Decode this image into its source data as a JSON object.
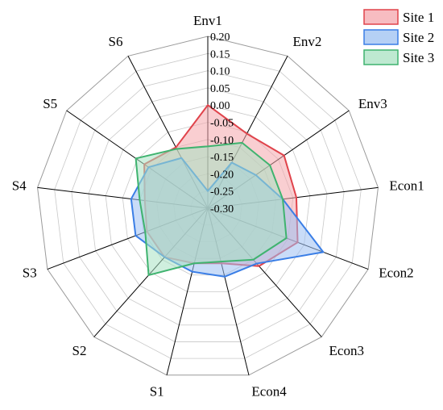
{
  "chart_data": {
    "type": "radar",
    "title": "",
    "axes": [
      "Env1",
      "Env2",
      "Env3",
      "Econ1",
      "Econ2",
      "Econ3",
      "Econ4",
      "S1",
      "S2",
      "S3",
      "S4",
      "S5",
      "S6"
    ],
    "rlim": [
      -0.3,
      0.2
    ],
    "ticks": [
      "0.20",
      "0.15",
      "0.10",
      "0.05",
      "0.00",
      "-0.05",
      "-0.10",
      "-0.15",
      "-0.20",
      "-0.25",
      "-0.30"
    ],
    "tick_values": [
      0.2,
      0.15,
      0.1,
      0.05,
      0.0,
      -0.05,
      -0.1,
      -0.15,
      -0.2,
      -0.25,
      -0.3
    ],
    "grid": true,
    "legend_position": "top-right",
    "series": [
      {
        "name": "Site 1",
        "values": [
          0.0,
          -0.055,
          -0.03,
          -0.04,
          -0.02,
          -0.075,
          -0.135,
          -0.135,
          -0.11,
          -0.11,
          -0.115,
          -0.075,
          -0.1
        ],
        "color": "#e0434b",
        "fill": "#f4a6ac"
      },
      {
        "name": "Site 2",
        "values": [
          -0.25,
          -0.15,
          -0.13,
          -0.08,
          0.06,
          -0.085,
          -0.095,
          -0.11,
          -0.11,
          -0.075,
          -0.075,
          -0.09,
          -0.135
        ],
        "color": "#3a7ee6",
        "fill": "#9cc0f2"
      },
      {
        "name": "Site 3",
        "values": [
          -0.12,
          -0.085,
          -0.08,
          -0.08,
          -0.055,
          -0.1,
          -0.14,
          -0.135,
          -0.04,
          -0.105,
          -0.1,
          -0.045,
          -0.105
        ],
        "color": "#3fb36f",
        "fill": "#a8e2c2"
      }
    ]
  }
}
